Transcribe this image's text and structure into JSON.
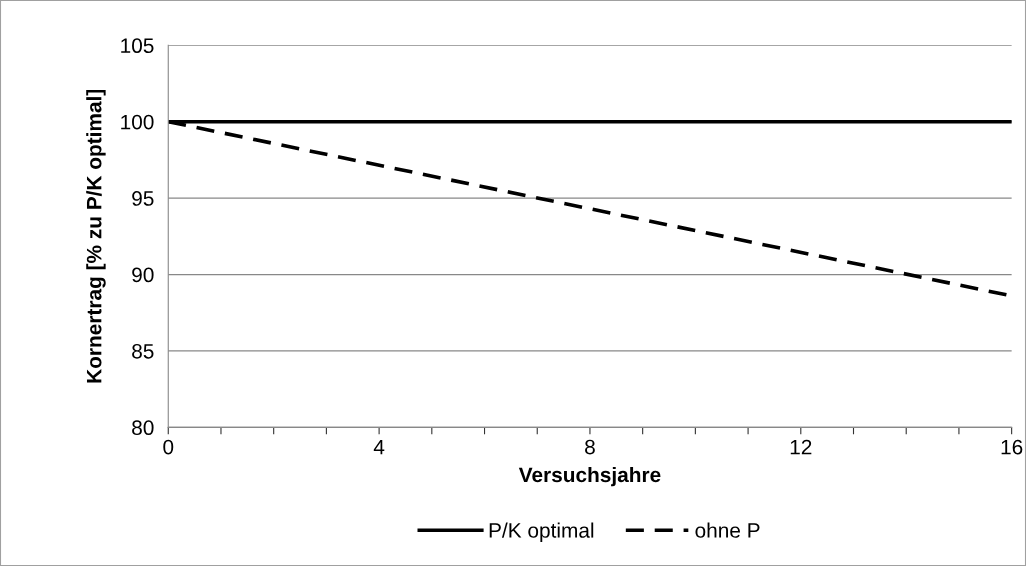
{
  "chart_data": {
    "type": "line",
    "xlabel": "Versuchsjahre",
    "ylabel": "Kornertrag [% zu P/K optimal]",
    "x": [
      0,
      16
    ],
    "series": [
      {
        "name": "P/K optimal",
        "color": "#000000",
        "values": [
          100,
          100
        ],
        "line_style": "solid"
      },
      {
        "name": "ohne P",
        "color": "#000000",
        "values": [
          100,
          88.6
        ],
        "line_style": "dashed"
      }
    ],
    "xlim": [
      0,
      16
    ],
    "xticks": [
      0,
      {
        "value": 1,
        "label": null
      },
      {
        "value": 2,
        "label": null
      },
      {
        "value": 3,
        "label": null
      },
      4,
      {
        "value": 5,
        "label": null
      },
      {
        "value": 6,
        "label": null
      },
      {
        "value": 7,
        "label": null
      },
      8,
      {
        "value": 9,
        "label": null
      },
      {
        "value": 10,
        "label": null
      },
      {
        "value": 11,
        "label": null
      },
      12,
      {
        "value": 13,
        "label": null
      },
      {
        "value": 14,
        "label": null
      },
      {
        "value": 15,
        "label": null
      },
      16
    ],
    "ylim": [
      80,
      105
    ],
    "yticks": [
      80,
      85,
      90,
      95,
      100,
      105
    ],
    "grid": "y",
    "legend": "bottom",
    "marker": "none"
  }
}
